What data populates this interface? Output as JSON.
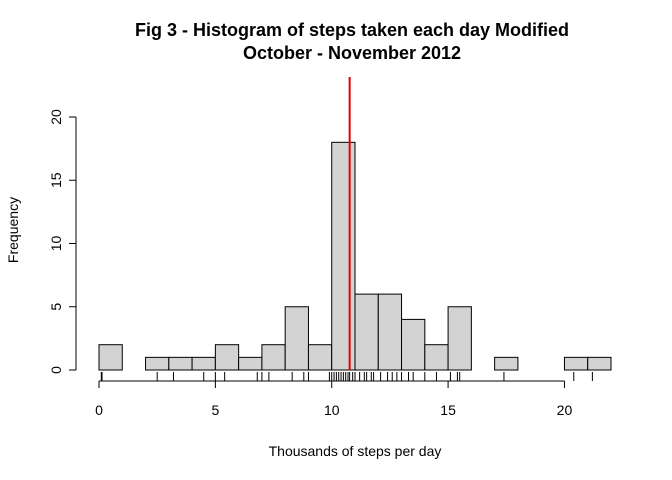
{
  "chart_data": {
    "type": "bar",
    "title": "Fig 3 - Histogram of steps taken each day Modified",
    "subtitle": "October - November 2012",
    "xlabel": "Thousands of steps per day",
    "ylabel": "Frequency",
    "xlim": [
      0,
      22
    ],
    "ylim": [
      0,
      20
    ],
    "x_ticks": [
      0,
      5,
      10,
      15,
      20
    ],
    "y_ticks": [
      0,
      5,
      10,
      15,
      20
    ],
    "bin_width": 1,
    "bins": [
      {
        "start": 0,
        "end": 1,
        "count": 2
      },
      {
        "start": 1,
        "end": 2,
        "count": 0
      },
      {
        "start": 2,
        "end": 3,
        "count": 1
      },
      {
        "start": 3,
        "end": 4,
        "count": 1
      },
      {
        "start": 4,
        "end": 5,
        "count": 1
      },
      {
        "start": 5,
        "end": 6,
        "count": 2
      },
      {
        "start": 6,
        "end": 7,
        "count": 1
      },
      {
        "start": 7,
        "end": 8,
        "count": 2
      },
      {
        "start": 8,
        "end": 9,
        "count": 5
      },
      {
        "start": 9,
        "end": 10,
        "count": 2
      },
      {
        "start": 10,
        "end": 11,
        "count": 18
      },
      {
        "start": 11,
        "end": 12,
        "count": 6
      },
      {
        "start": 12,
        "end": 13,
        "count": 6
      },
      {
        "start": 13,
        "end": 14,
        "count": 4
      },
      {
        "start": 14,
        "end": 15,
        "count": 2
      },
      {
        "start": 15,
        "end": 16,
        "count": 5
      },
      {
        "start": 16,
        "end": 17,
        "count": 0
      },
      {
        "start": 17,
        "end": 18,
        "count": 1
      },
      {
        "start": 18,
        "end": 19,
        "count": 0
      },
      {
        "start": 19,
        "end": 20,
        "count": 0
      },
      {
        "start": 20,
        "end": 21,
        "count": 1
      },
      {
        "start": 21,
        "end": 22,
        "count": 1
      }
    ],
    "reference_line": {
      "x": 10.77,
      "color": "#e00000"
    },
    "rug": [
      0.1,
      0.13,
      2.5,
      3.2,
      4.5,
      5.0,
      5.4,
      6.8,
      7.0,
      7.3,
      8.3,
      8.8,
      9.0,
      9.9,
      10.0,
      10.1,
      10.2,
      10.3,
      10.4,
      10.5,
      10.6,
      10.7,
      10.77,
      10.9,
      11.0,
      11.2,
      11.4,
      11.5,
      11.7,
      11.8,
      12.1,
      12.4,
      12.6,
      12.8,
      13.0,
      13.3,
      13.5,
      14.0,
      14.5,
      15.1,
      15.4,
      15.5,
      17.4,
      20.4,
      21.2
    ],
    "bar_fill": "#d3d3d3",
    "bar_stroke": "#000000"
  }
}
